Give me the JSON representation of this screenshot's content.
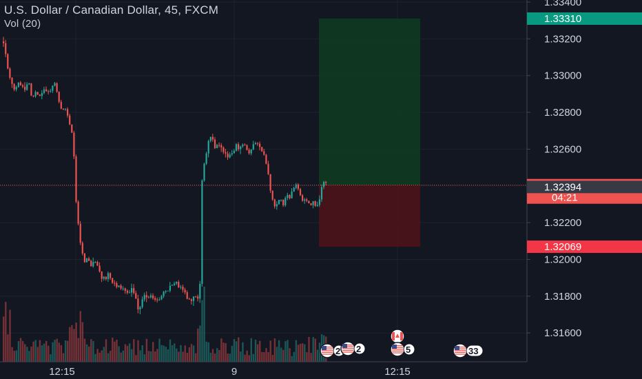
{
  "header": {
    "title": "U.S. Dollar / Canadian Dollar, 45, FXCM",
    "volume_label": "Vol (20)"
  },
  "chart_data": {
    "type": "candlestick",
    "title": "U.S. Dollar / Canadian Dollar, 45, FXCM",
    "y_ticks": [
      "1.33400",
      "1.33200",
      "1.33000",
      "1.32800",
      "1.32600",
      "1.32200",
      "1.32000",
      "1.31800",
      "1.31600"
    ],
    "y_tick_values": [
      1.334,
      1.332,
      1.33,
      1.328,
      1.326,
      1.322,
      1.32,
      1.318,
      1.316
    ],
    "ylim": [
      1.3142,
      1.3346
    ],
    "x_ticks": [
      "12:15",
      "9",
      "12:15"
    ],
    "price_tags": {
      "target": "1.33310",
      "current": "1.32404",
      "countdown": "04:21",
      "bid": "1.32394",
      "stop": "1.32069"
    },
    "price_tag_values": {
      "target": 1.3331,
      "current": 1.32404,
      "bid": 1.32394,
      "stop": 1.32069
    },
    "position": {
      "type": "long",
      "entry": 1.32404,
      "target": 1.3331,
      "stop": 1.32069
    },
    "events": [
      {
        "label": "2",
        "flag": "us"
      },
      {
        "label": "2",
        "flag": "us"
      },
      {
        "label": "5",
        "flag": "us"
      },
      {
        "label": "",
        "flag": "ca"
      },
      {
        "label": "33",
        "flag": "us"
      }
    ],
    "colors": {
      "up": "#26a69a",
      "down": "#ef5350",
      "target": "#089981",
      "current": "#ef5350",
      "bid": "#363a45",
      "stop": "#f23645"
    }
  }
}
